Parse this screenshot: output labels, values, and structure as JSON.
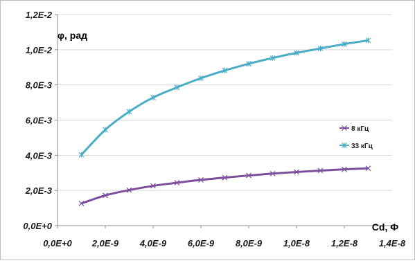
{
  "chart_data": {
    "type": "line",
    "xlabel": "Cd, Ф",
    "ylabel": "φ, рад",
    "xlim": [
      0,
      1.4e-08
    ],
    "ylim": [
      0,
      0.012
    ],
    "x_ticks": [
      0,
      2e-09,
      4e-09,
      6e-09,
      8e-09,
      1e-08,
      1.2e-08,
      1.4e-08
    ],
    "y_ticks": [
      0,
      0.002,
      0.004,
      0.006,
      0.008,
      0.01,
      0.012
    ],
    "x_tick_labels": [
      "0,0E+0",
      "2,0E-9",
      "4,0E-9",
      "6,0E-9",
      "8,0E-9",
      "1,0E-8",
      "1,2E-8",
      "1,4E-8"
    ],
    "y_tick_labels": [
      "0,0E+0",
      "2,0E-3",
      "4,0E-3",
      "6,0E-3",
      "8,0E-3",
      "1,0E-2",
      "1,2E-2"
    ],
    "x": [
      1e-09,
      2e-09,
      3e-09,
      4e-09,
      5e-09,
      6e-09,
      7e-09,
      8e-09,
      9e-09,
      1e-08,
      1.1e-08,
      1.2e-08,
      1.3e-08
    ],
    "series": [
      {
        "name": "8 кГц",
        "color": "#7b4f9d",
        "marker": "x",
        "values": [
          0.00126,
          0.00172,
          0.00202,
          0.00226,
          0.00244,
          0.0026,
          0.00273,
          0.00285,
          0.00296,
          0.00305,
          0.00313,
          0.0032,
          0.00326
        ]
      },
      {
        "name": "33 кГц",
        "color": "#4bacc6",
        "marker": "asterisk",
        "values": [
          0.00403,
          0.00545,
          0.00648,
          0.00728,
          0.00786,
          0.00838,
          0.00882,
          0.0092,
          0.00953,
          0.00982,
          0.01007,
          0.01032,
          0.01053
        ]
      }
    ],
    "grid": {
      "x": false,
      "y": true
    },
    "legend_position": "right"
  }
}
